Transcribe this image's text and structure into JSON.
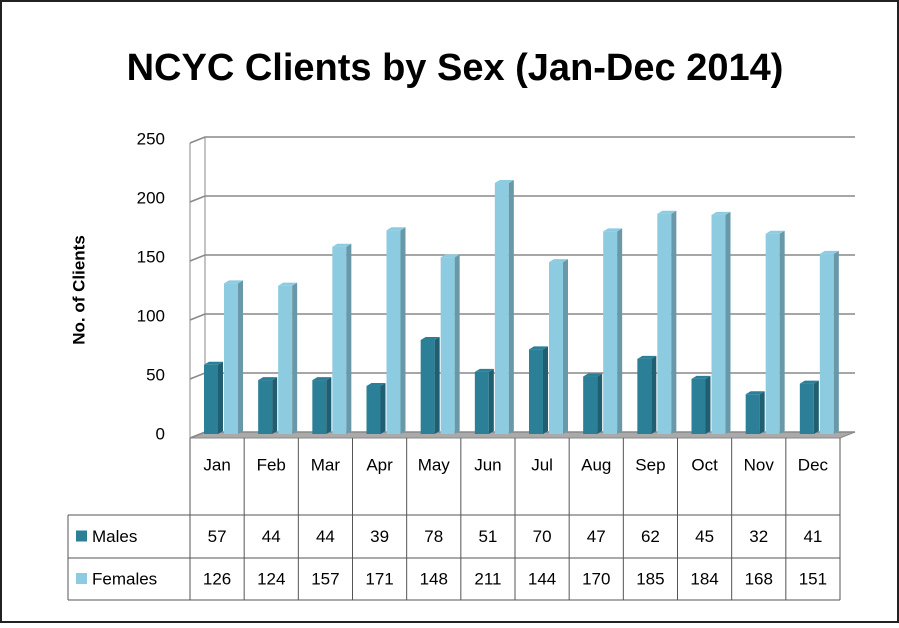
{
  "chart_data": {
    "type": "bar3d",
    "title": "NCYC Clients by Sex (Jan-Dec 2014)",
    "y_label": "No. of Clients",
    "categories": [
      "Jan",
      "Feb",
      "Mar",
      "Apr",
      "May",
      "Jun",
      "Jul",
      "Aug",
      "Sep",
      "Oct",
      "Nov",
      "Dec"
    ],
    "series": [
      {
        "name": "Males",
        "color": "#2b7f97",
        "values": [
          57,
          44,
          44,
          39,
          78,
          51,
          70,
          47,
          62,
          45,
          32,
          41
        ]
      },
      {
        "name": "Females",
        "color": "#8ccbe0",
        "values": [
          126,
          124,
          157,
          171,
          148,
          211,
          144,
          170,
          185,
          184,
          168,
          151
        ]
      }
    ],
    "ylim": [
      0,
      250
    ],
    "yticks": [
      0,
      50,
      100,
      150,
      200,
      250
    ],
    "grid": true,
    "data_table": true
  }
}
